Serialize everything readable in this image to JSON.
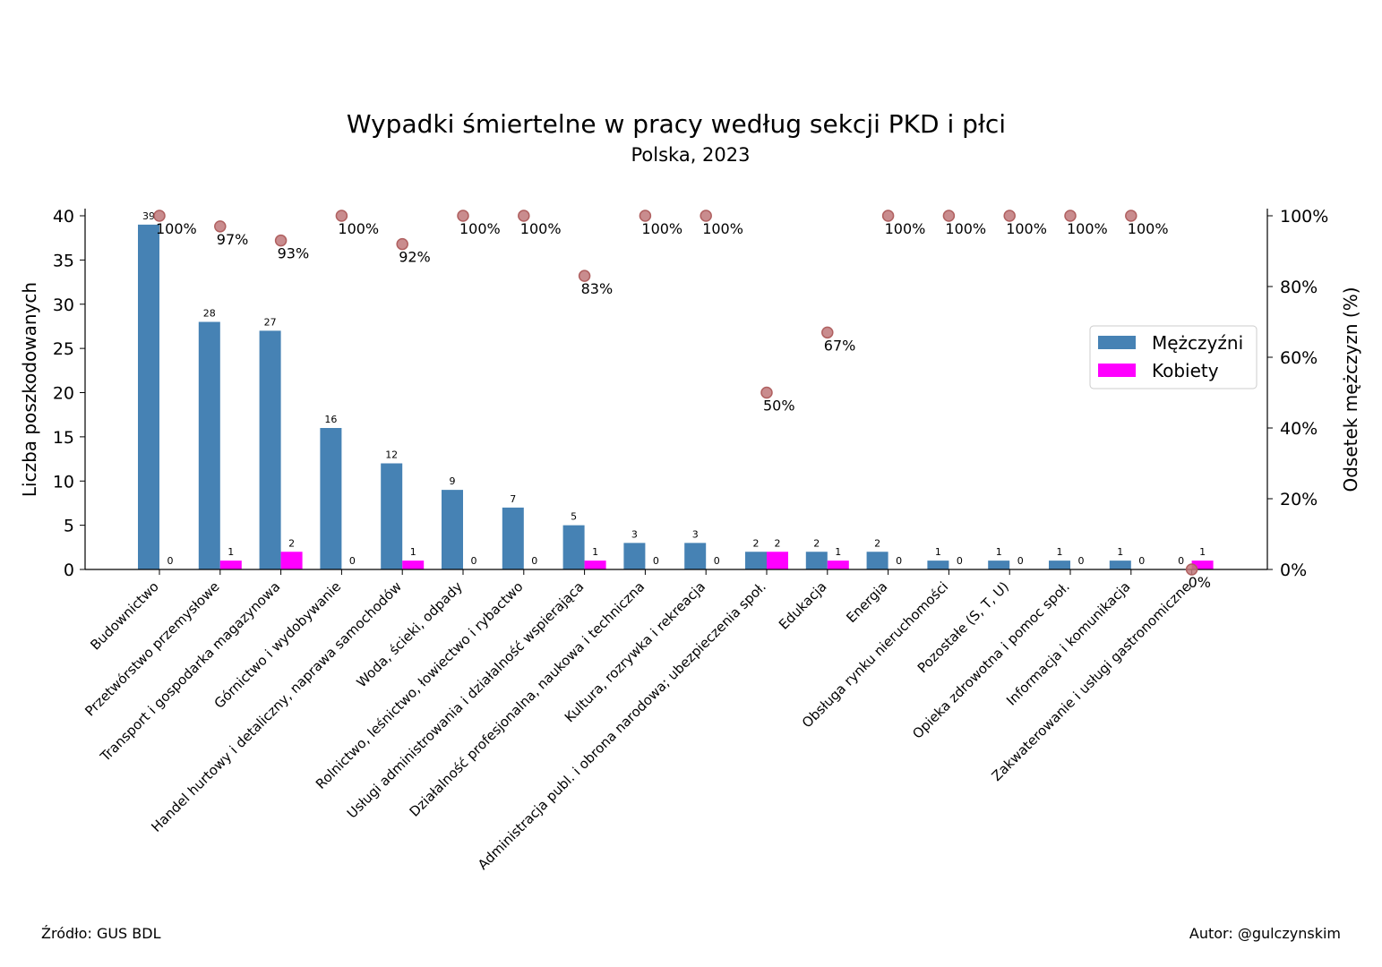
{
  "chart_data": {
    "type": "bar",
    "title": "Wypadki śmiertelne w pracy według sekcji PKD i płci",
    "subtitle": "Polska, 2023",
    "ylabel": "Liczba poszkodowanych",
    "y2label": "Odsetek mężczyzn (%)",
    "ylim": [
      0,
      40
    ],
    "y2lim": [
      0,
      100
    ],
    "yticks": [
      "0",
      "5",
      "10",
      "15",
      "20",
      "25",
      "30",
      "35",
      "40"
    ],
    "y2ticks": [
      "0%",
      "20%",
      "40%",
      "60%",
      "80%",
      "100%"
    ],
    "categories": [
      "Budownictwo",
      "Przetwórstwo przemysłowe",
      "Transport i gospodarka magazynowa",
      "Górnictwo i wydobywanie",
      "Handel hurtowy i detaliczny, naprawa samochodów",
      "Woda, ścieki, odpady",
      "Rolnictwo, leśnictwo, łowiectwo i rybactwo",
      "Usługi administrowania i działalność wspierająca",
      "Działalność profesjonalna, naukowa i techniczna",
      "Kultura, rozrywka i rekreacja",
      "Administracja publ. i obrona narodowa; ubezpieczenia społ.",
      "Edukacja",
      "Energia",
      "Obsługa rynku nieruchomości",
      "Pozostałe (S, T, U)",
      "Opieka zdrowotna i pomoc społ.",
      "Informacja i komunikacja",
      "Zakwaterowanie i usługi gastronomiczne"
    ],
    "series": [
      {
        "name": "Mężczyźni",
        "color": "#4682b4",
        "values": [
          39,
          28,
          27,
          16,
          12,
          9,
          7,
          5,
          3,
          3,
          2,
          2,
          2,
          1,
          1,
          1,
          1,
          0
        ]
      },
      {
        "name": "Kobiety",
        "color": "#ff00ff",
        "values": [
          0,
          1,
          2,
          0,
          1,
          0,
          0,
          1,
          0,
          0,
          2,
          1,
          0,
          0,
          0,
          0,
          0,
          1
        ]
      }
    ],
    "share_men": {
      "color": "#c0787a",
      "values": [
        100,
        97,
        93,
        100,
        92,
        100,
        100,
        83,
        100,
        100,
        50,
        67,
        100,
        100,
        100,
        100,
        100,
        0
      ],
      "labels": [
        "100%",
        "97%",
        "93%",
        "100%",
        "92%",
        "100%",
        "100%",
        "83%",
        "100%",
        "100%",
        "50%",
        "67%",
        "100%",
        "100%",
        "100%",
        "100%",
        "100%",
        "0%"
      ]
    },
    "legend_position": "center-right",
    "grid": false
  },
  "footer": {
    "source": "Źródło: GUS BDL",
    "author": "Autor: @gulczynskim"
  }
}
